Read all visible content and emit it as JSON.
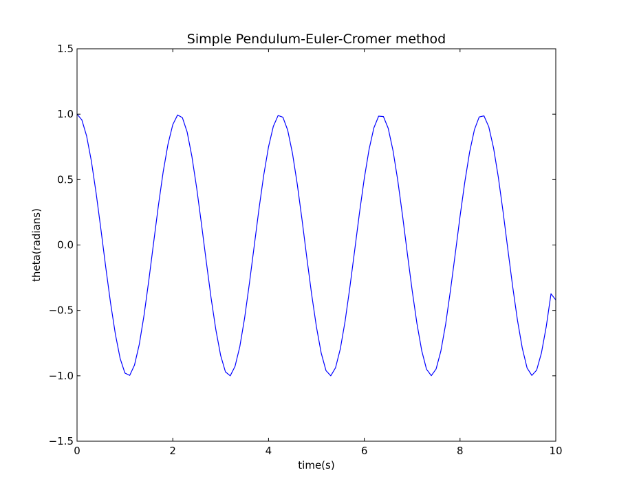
{
  "chart_data": {
    "type": "line",
    "title": "Simple Pendulum-Euler-Cromer method",
    "xlabel": "time(s)",
    "ylabel": "theta(radians)",
    "xlim": [
      0,
      10
    ],
    "ylim": [
      -1.5,
      1.5
    ],
    "xticks": [
      0,
      2,
      4,
      6,
      8,
      10
    ],
    "xtick_labels": [
      "0",
      "2",
      "4",
      "6",
      "8",
      "10"
    ],
    "yticks": [
      -1.5,
      -1.0,
      -0.5,
      0.0,
      0.5,
      1.0,
      1.5
    ],
    "ytick_labels": [
      "−1.5",
      "−1.0",
      "−0.5",
      "0.0",
      "0.5",
      "1.0",
      "1.5"
    ],
    "grid": false,
    "series": [
      {
        "color": "#0000ff",
        "x": [
          0.0,
          0.1,
          0.2,
          0.3,
          0.4,
          0.5,
          0.6,
          0.7,
          0.8,
          0.9,
          1.0,
          1.1,
          1.2,
          1.3,
          1.4,
          1.5,
          1.6,
          1.7,
          1.8,
          1.9,
          2.0,
          2.1,
          2.2,
          2.3,
          2.4,
          2.5,
          2.6,
          2.7,
          2.8,
          2.9,
          3.0,
          3.1,
          3.2,
          3.3,
          3.4,
          3.5,
          3.6,
          3.7,
          3.8,
          3.9,
          4.0,
          4.1,
          4.2,
          4.3,
          4.4,
          4.5,
          4.6,
          4.7,
          4.8,
          4.9,
          5.0,
          5.1,
          5.2,
          5.3,
          5.4,
          5.5,
          5.6,
          5.7,
          5.8,
          5.9,
          6.0,
          6.1,
          6.2,
          6.3,
          6.4,
          6.5,
          6.6,
          6.7,
          6.8,
          6.9,
          7.0,
          7.1,
          7.2,
          7.3,
          7.4,
          7.5,
          7.6,
          7.7,
          7.8,
          7.9,
          8.0,
          8.1,
          8.2,
          8.3,
          8.4,
          8.5,
          8.6,
          8.7,
          8.8,
          8.9,
          9.0,
          9.1,
          9.2,
          9.3,
          9.4,
          9.5,
          9.6,
          9.7,
          9.8,
          9.9,
          10.0
        ],
        "y": [
          1.0,
          0.957,
          0.833,
          0.64,
          0.393,
          0.116,
          -0.171,
          -0.443,
          -0.68,
          -0.867,
          -0.979,
          -0.997,
          -0.918,
          -0.76,
          -0.536,
          -0.268,
          0.019,
          0.303,
          0.561,
          0.771,
          0.92,
          0.994,
          0.974,
          0.863,
          0.675,
          0.433,
          0.158,
          -0.128,
          -0.405,
          -0.649,
          -0.845,
          -0.97,
          -1.0,
          -0.928,
          -0.777,
          -0.559,
          -0.294,
          -0.01,
          0.274,
          0.535,
          0.751,
          0.907,
          0.99,
          0.977,
          0.878,
          0.701,
          0.465,
          0.192,
          -0.098,
          -0.376,
          -0.625,
          -0.826,
          -0.96,
          -1.0,
          -0.938,
          -0.793,
          -0.581,
          -0.32,
          -0.039,
          0.247,
          0.509,
          0.731,
          0.895,
          0.985,
          0.982,
          0.892,
          0.722,
          0.492,
          0.222,
          -0.067,
          -0.347,
          -0.601,
          -0.808,
          -0.95,
          -0.999,
          -0.948,
          -0.81,
          -0.604,
          -0.347,
          -0.068,
          0.218,
          0.482,
          0.71,
          0.881,
          0.979,
          0.987,
          0.904,
          0.742,
          0.518,
          0.251,
          -0.037,
          -0.319,
          -0.576,
          -0.788,
          -0.94,
          -0.997,
          -0.957,
          -0.826,
          -0.626,
          -0.373,
          -0.42
        ]
      }
    ]
  }
}
